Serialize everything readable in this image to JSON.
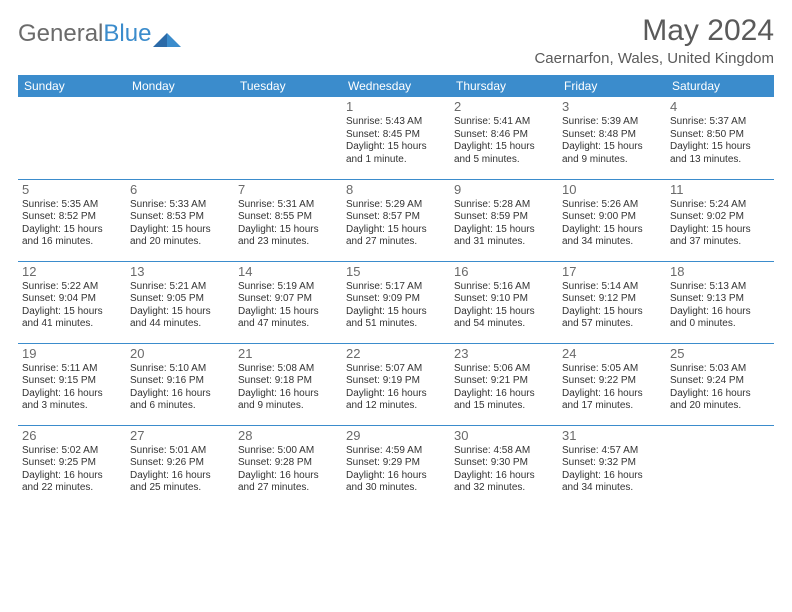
{
  "logo": {
    "word1": "General",
    "word2": "Blue"
  },
  "title": "May 2024",
  "subtitle": "Caernarfon, Wales, United Kingdom",
  "colors": {
    "header_bg": "#3b8ccc",
    "header_text": "#ffffff",
    "text": "#333333",
    "muted": "#6a6a6a",
    "logo_gray": "#6b6b6b",
    "logo_blue": "#3b8ccc",
    "background": "#ffffff"
  },
  "dayHeaders": [
    "Sunday",
    "Monday",
    "Tuesday",
    "Wednesday",
    "Thursday",
    "Friday",
    "Saturday"
  ],
  "weeks": [
    [
      null,
      null,
      null,
      {
        "n": "1",
        "sr": "Sunrise: 5:43 AM",
        "ss": "Sunset: 8:45 PM",
        "dl1": "Daylight: 15 hours",
        "dl2": "and 1 minute."
      },
      {
        "n": "2",
        "sr": "Sunrise: 5:41 AM",
        "ss": "Sunset: 8:46 PM",
        "dl1": "Daylight: 15 hours",
        "dl2": "and 5 minutes."
      },
      {
        "n": "3",
        "sr": "Sunrise: 5:39 AM",
        "ss": "Sunset: 8:48 PM",
        "dl1": "Daylight: 15 hours",
        "dl2": "and 9 minutes."
      },
      {
        "n": "4",
        "sr": "Sunrise: 5:37 AM",
        "ss": "Sunset: 8:50 PM",
        "dl1": "Daylight: 15 hours",
        "dl2": "and 13 minutes."
      }
    ],
    [
      {
        "n": "5",
        "sr": "Sunrise: 5:35 AM",
        "ss": "Sunset: 8:52 PM",
        "dl1": "Daylight: 15 hours",
        "dl2": "and 16 minutes."
      },
      {
        "n": "6",
        "sr": "Sunrise: 5:33 AM",
        "ss": "Sunset: 8:53 PM",
        "dl1": "Daylight: 15 hours",
        "dl2": "and 20 minutes."
      },
      {
        "n": "7",
        "sr": "Sunrise: 5:31 AM",
        "ss": "Sunset: 8:55 PM",
        "dl1": "Daylight: 15 hours",
        "dl2": "and 23 minutes."
      },
      {
        "n": "8",
        "sr": "Sunrise: 5:29 AM",
        "ss": "Sunset: 8:57 PM",
        "dl1": "Daylight: 15 hours",
        "dl2": "and 27 minutes."
      },
      {
        "n": "9",
        "sr": "Sunrise: 5:28 AM",
        "ss": "Sunset: 8:59 PM",
        "dl1": "Daylight: 15 hours",
        "dl2": "and 31 minutes."
      },
      {
        "n": "10",
        "sr": "Sunrise: 5:26 AM",
        "ss": "Sunset: 9:00 PM",
        "dl1": "Daylight: 15 hours",
        "dl2": "and 34 minutes."
      },
      {
        "n": "11",
        "sr": "Sunrise: 5:24 AM",
        "ss": "Sunset: 9:02 PM",
        "dl1": "Daylight: 15 hours",
        "dl2": "and 37 minutes."
      }
    ],
    [
      {
        "n": "12",
        "sr": "Sunrise: 5:22 AM",
        "ss": "Sunset: 9:04 PM",
        "dl1": "Daylight: 15 hours",
        "dl2": "and 41 minutes."
      },
      {
        "n": "13",
        "sr": "Sunrise: 5:21 AM",
        "ss": "Sunset: 9:05 PM",
        "dl1": "Daylight: 15 hours",
        "dl2": "and 44 minutes."
      },
      {
        "n": "14",
        "sr": "Sunrise: 5:19 AM",
        "ss": "Sunset: 9:07 PM",
        "dl1": "Daylight: 15 hours",
        "dl2": "and 47 minutes."
      },
      {
        "n": "15",
        "sr": "Sunrise: 5:17 AM",
        "ss": "Sunset: 9:09 PM",
        "dl1": "Daylight: 15 hours",
        "dl2": "and 51 minutes."
      },
      {
        "n": "16",
        "sr": "Sunrise: 5:16 AM",
        "ss": "Sunset: 9:10 PM",
        "dl1": "Daylight: 15 hours",
        "dl2": "and 54 minutes."
      },
      {
        "n": "17",
        "sr": "Sunrise: 5:14 AM",
        "ss": "Sunset: 9:12 PM",
        "dl1": "Daylight: 15 hours",
        "dl2": "and 57 minutes."
      },
      {
        "n": "18",
        "sr": "Sunrise: 5:13 AM",
        "ss": "Sunset: 9:13 PM",
        "dl1": "Daylight: 16 hours",
        "dl2": "and 0 minutes."
      }
    ],
    [
      {
        "n": "19",
        "sr": "Sunrise: 5:11 AM",
        "ss": "Sunset: 9:15 PM",
        "dl1": "Daylight: 16 hours",
        "dl2": "and 3 minutes."
      },
      {
        "n": "20",
        "sr": "Sunrise: 5:10 AM",
        "ss": "Sunset: 9:16 PM",
        "dl1": "Daylight: 16 hours",
        "dl2": "and 6 minutes."
      },
      {
        "n": "21",
        "sr": "Sunrise: 5:08 AM",
        "ss": "Sunset: 9:18 PM",
        "dl1": "Daylight: 16 hours",
        "dl2": "and 9 minutes."
      },
      {
        "n": "22",
        "sr": "Sunrise: 5:07 AM",
        "ss": "Sunset: 9:19 PM",
        "dl1": "Daylight: 16 hours",
        "dl2": "and 12 minutes."
      },
      {
        "n": "23",
        "sr": "Sunrise: 5:06 AM",
        "ss": "Sunset: 9:21 PM",
        "dl1": "Daylight: 16 hours",
        "dl2": "and 15 minutes."
      },
      {
        "n": "24",
        "sr": "Sunrise: 5:05 AM",
        "ss": "Sunset: 9:22 PM",
        "dl1": "Daylight: 16 hours",
        "dl2": "and 17 minutes."
      },
      {
        "n": "25",
        "sr": "Sunrise: 5:03 AM",
        "ss": "Sunset: 9:24 PM",
        "dl1": "Daylight: 16 hours",
        "dl2": "and 20 minutes."
      }
    ],
    [
      {
        "n": "26",
        "sr": "Sunrise: 5:02 AM",
        "ss": "Sunset: 9:25 PM",
        "dl1": "Daylight: 16 hours",
        "dl2": "and 22 minutes."
      },
      {
        "n": "27",
        "sr": "Sunrise: 5:01 AM",
        "ss": "Sunset: 9:26 PM",
        "dl1": "Daylight: 16 hours",
        "dl2": "and 25 minutes."
      },
      {
        "n": "28",
        "sr": "Sunrise: 5:00 AM",
        "ss": "Sunset: 9:28 PM",
        "dl1": "Daylight: 16 hours",
        "dl2": "and 27 minutes."
      },
      {
        "n": "29",
        "sr": "Sunrise: 4:59 AM",
        "ss": "Sunset: 9:29 PM",
        "dl1": "Daylight: 16 hours",
        "dl2": "and 30 minutes."
      },
      {
        "n": "30",
        "sr": "Sunrise: 4:58 AM",
        "ss": "Sunset: 9:30 PM",
        "dl1": "Daylight: 16 hours",
        "dl2": "and 32 minutes."
      },
      {
        "n": "31",
        "sr": "Sunrise: 4:57 AM",
        "ss": "Sunset: 9:32 PM",
        "dl1": "Daylight: 16 hours",
        "dl2": "and 34 minutes."
      },
      null
    ]
  ]
}
